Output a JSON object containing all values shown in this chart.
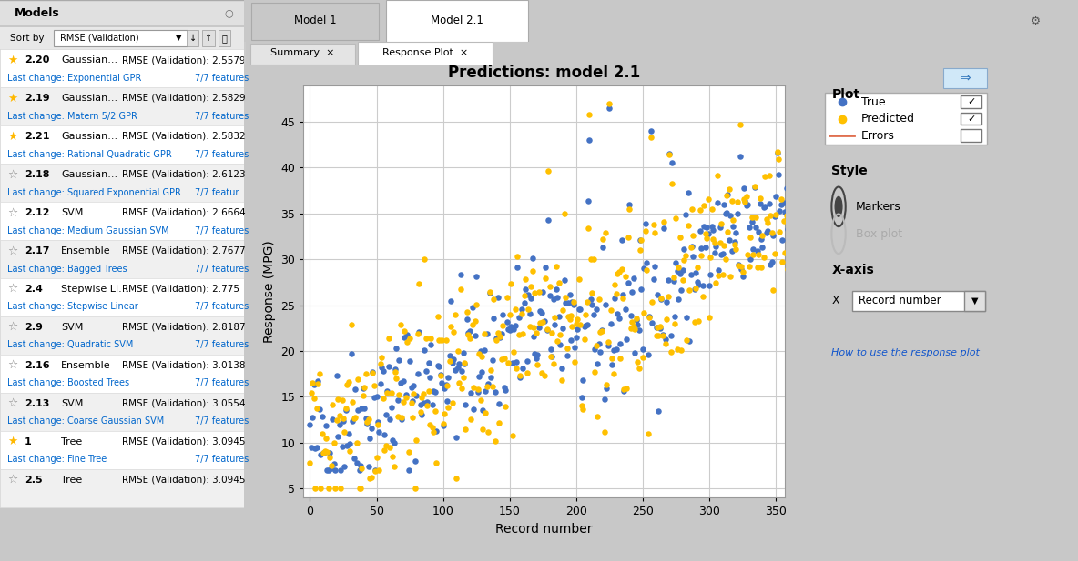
{
  "title": "Predictions: model 2.1",
  "xlabel": "Record number",
  "ylabel": "Response (MPG)",
  "xlim": [
    -5,
    357
  ],
  "ylim": [
    4,
    49
  ],
  "xticks": [
    0,
    50,
    100,
    150,
    200,
    250,
    300,
    350
  ],
  "yticks": [
    5,
    10,
    15,
    20,
    25,
    30,
    35,
    40,
    45
  ],
  "true_color": "#4472C4",
  "predicted_color": "#FFC000",
  "bg_color": "#FFFFFF",
  "panel_bg": "#E8E8E8",
  "left_panel_bg": "#F0F0F0",
  "right_panel_bg": "#EBEBEB",
  "grid_color": "#CCCCCC",
  "seed": 42,
  "n_points": 392,
  "error_color": "#E07050",
  "link_text": "How to use the response plot",
  "title_fontsize": 12,
  "label_fontsize": 10,
  "tick_fontsize": 9
}
